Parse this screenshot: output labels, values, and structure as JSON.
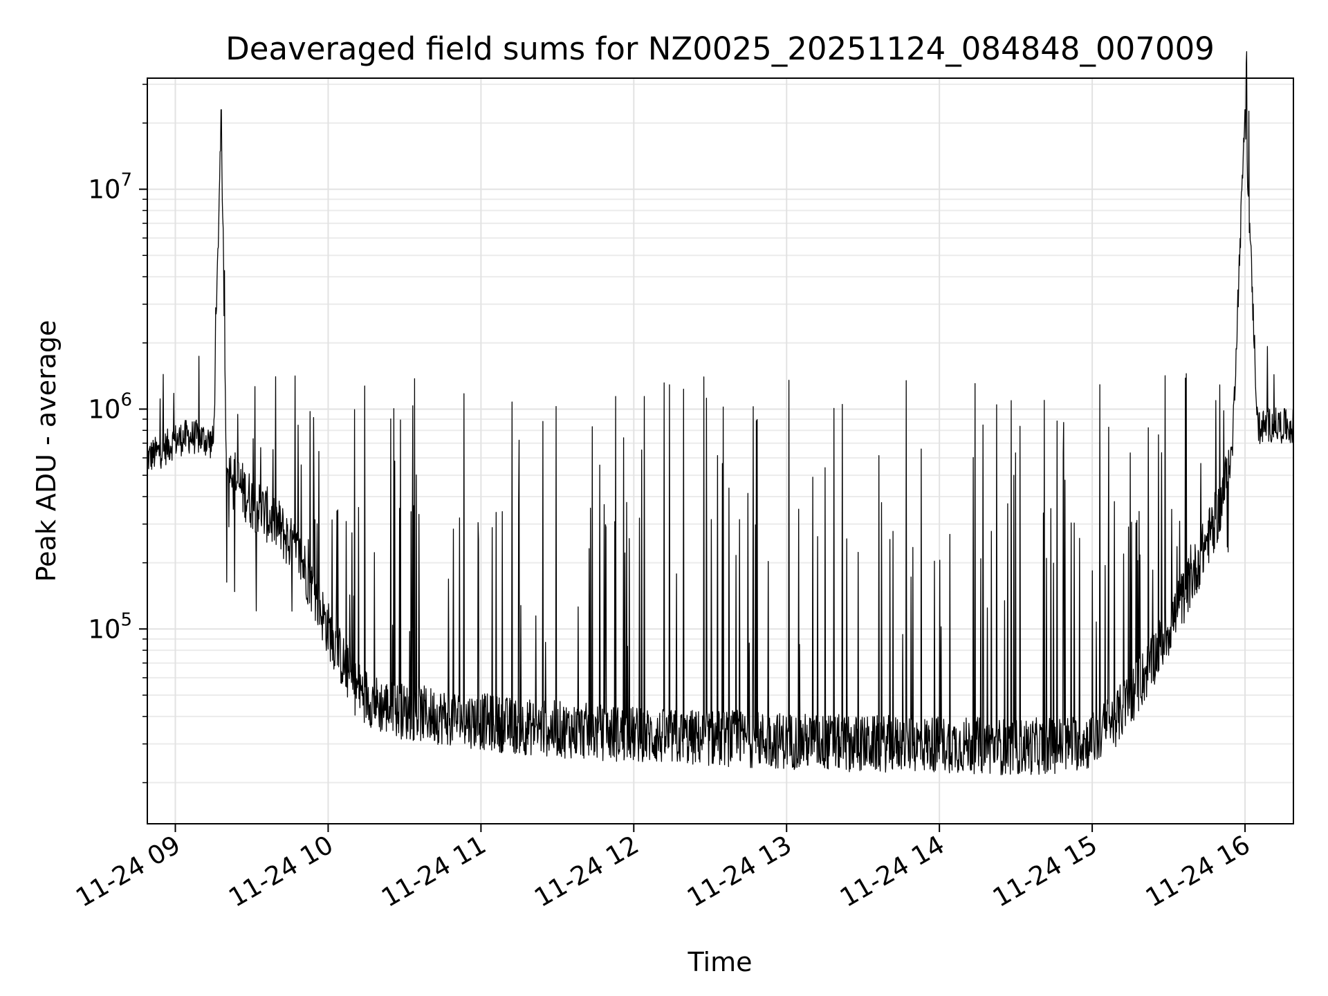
{
  "chart_data": {
    "type": "line",
    "title": "Deaveraged field sums for NZ0025_20251124_084848_007009",
    "xlabel": "Time",
    "ylabel": "Peak ADU - average",
    "yscale": "log",
    "grid": "on",
    "legend": "none",
    "line_color": "#000000",
    "xlim": [
      "2025-11-24 08:49",
      "2025-11-24 16:19"
    ],
    "ylim": [
      13000,
      32000000
    ],
    "xticks": [
      {
        "value": "2025-11-24 09:00",
        "label": "11-24 09"
      },
      {
        "value": "2025-11-24 10:00",
        "label": "11-24 10"
      },
      {
        "value": "2025-11-24 11:00",
        "label": "11-24 11"
      },
      {
        "value": "2025-11-24 12:00",
        "label": "11-24 12"
      },
      {
        "value": "2025-11-24 13:00",
        "label": "11-24 13"
      },
      {
        "value": "2025-11-24 14:00",
        "label": "11-24 14"
      },
      {
        "value": "2025-11-24 15:00",
        "label": "11-24 15"
      },
      {
        "value": "2025-11-24 16:00",
        "label": "11-24 16"
      }
    ],
    "yticks": [
      {
        "value": 100000,
        "base": "10",
        "exp": "5"
      },
      {
        "value": 1000000,
        "base": "10",
        "exp": "6"
      },
      {
        "value": 10000000,
        "base": "10",
        "exp": "7"
      }
    ],
    "series": [
      {
        "x": [
          "2025-11-24 08:49",
          "2025-11-24 08:55",
          "2025-11-24 09:00",
          "2025-11-24 09:05",
          "2025-11-24 09:10",
          "2025-11-24 09:15",
          "2025-11-24 09:18",
          "2025-11-24 09:20",
          "2025-11-24 09:25",
          "2025-11-24 09:30",
          "2025-11-24 09:40",
          "2025-11-24 09:50",
          "2025-11-24 10:00",
          "2025-11-24 10:10",
          "2025-11-24 10:20",
          "2025-11-24 10:30",
          "2025-11-24 10:45",
          "2025-11-24 11:00",
          "2025-11-24 11:15",
          "2025-11-24 11:30",
          "2025-11-24 11:45",
          "2025-11-24 12:00",
          "2025-11-24 12:15",
          "2025-11-24 12:30",
          "2025-11-24 12:45",
          "2025-11-24 13:00",
          "2025-11-24 13:15",
          "2025-11-24 13:30",
          "2025-11-24 13:45",
          "2025-11-24 14:00",
          "2025-11-24 14:15",
          "2025-11-24 14:30",
          "2025-11-24 14:45",
          "2025-11-24 15:00",
          "2025-11-24 15:10",
          "2025-11-24 15:20",
          "2025-11-24 15:30",
          "2025-11-24 15:40",
          "2025-11-24 15:50",
          "2025-11-24 15:55",
          "2025-11-24 16:00",
          "2025-11-24 16:05",
          "2025-11-24 16:10",
          "2025-11-24 16:19"
        ],
        "y": [
          600000,
          650000,
          720000,
          750000,
          740000,
          700000,
          23000000,
          600000,
          450000,
          380000,
          300000,
          200000,
          100000,
          55000,
          45000,
          42000,
          40000,
          38000,
          36000,
          35000,
          34000,
          33000,
          32000,
          32000,
          31500,
          31000,
          30500,
          30000,
          30000,
          30000,
          29500,
          29000,
          29500,
          31000,
          40000,
          60000,
          100000,
          180000,
          350000,
          650000,
          23000000,
          820000,
          850000,
          830000
        ]
      }
    ]
  }
}
